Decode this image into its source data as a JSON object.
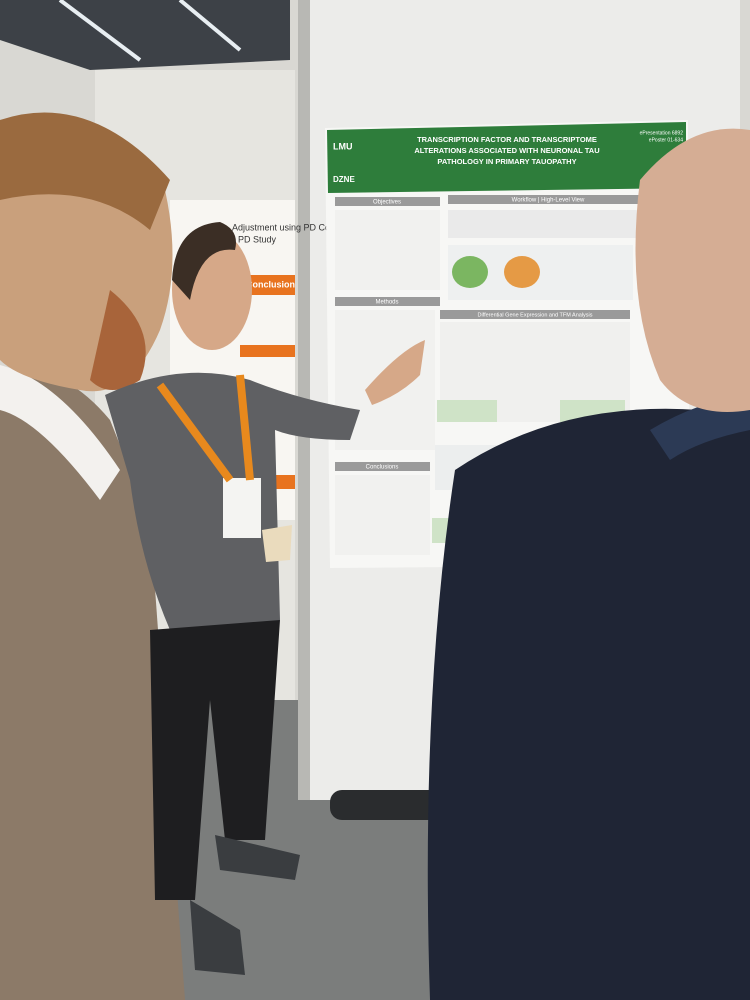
{
  "poster": {
    "title_lines": [
      "TRANSCRIPTION FACTOR AND TRANSCRIPTOME",
      "ALTERATIONS ASSOCIATED WITH NEURONAL TAU",
      "PATHOLOGY IN PRIMARY TAUOPATHY"
    ],
    "logos": [
      "LMU",
      "DZNE"
    ],
    "ids": [
      "ePresentation 6892",
      "ePoster 01-634"
    ],
    "sections": [
      "Objectives",
      "Workflow | High-Level View",
      "Methods",
      "Differential Gene Expression and TFM Analysis",
      "Conclusions"
    ]
  },
  "side_poster": {
    "title": "Adjustment using PD Course",
    "subtitle": "PD Study",
    "section": "Conclusion"
  }
}
